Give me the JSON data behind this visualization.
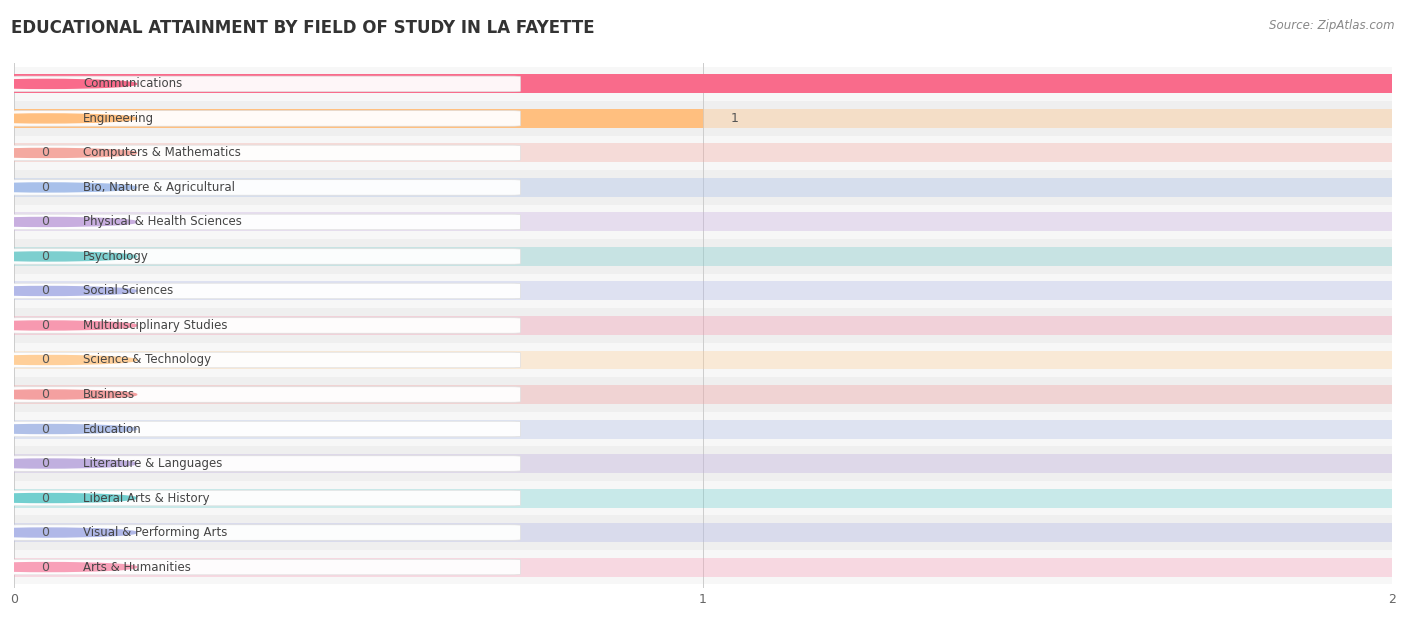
{
  "title": "EDUCATIONAL ATTAINMENT BY FIELD OF STUDY IN LA FAYETTE",
  "source": "Source: ZipAtlas.com",
  "categories": [
    "Communications",
    "Engineering",
    "Computers & Mathematics",
    "Bio, Nature & Agricultural",
    "Physical & Health Sciences",
    "Psychology",
    "Social Sciences",
    "Multidisciplinary Studies",
    "Science & Technology",
    "Business",
    "Education",
    "Literature & Languages",
    "Liberal Arts & History",
    "Visual & Performing Arts",
    "Arts & Humanities"
  ],
  "values": [
    2,
    1,
    0,
    0,
    0,
    0,
    0,
    0,
    0,
    0,
    0,
    0,
    0,
    0,
    0
  ],
  "bar_colors": [
    "#F96B8B",
    "#FFBF7F",
    "#F4A9A0",
    "#A8C0EA",
    "#C8AEDF",
    "#7DCFCF",
    "#B2B8E8",
    "#F799B0",
    "#FFCF99",
    "#F4A0A0",
    "#B0C0E8",
    "#C0AFDF",
    "#72CFCF",
    "#B0B8E8",
    "#F8A0B8"
  ],
  "xlim": [
    0,
    2
  ],
  "xticks": [
    0,
    1,
    2
  ],
  "title_fontsize": 12,
  "label_fontsize": 8.5,
  "value_fontsize": 9
}
